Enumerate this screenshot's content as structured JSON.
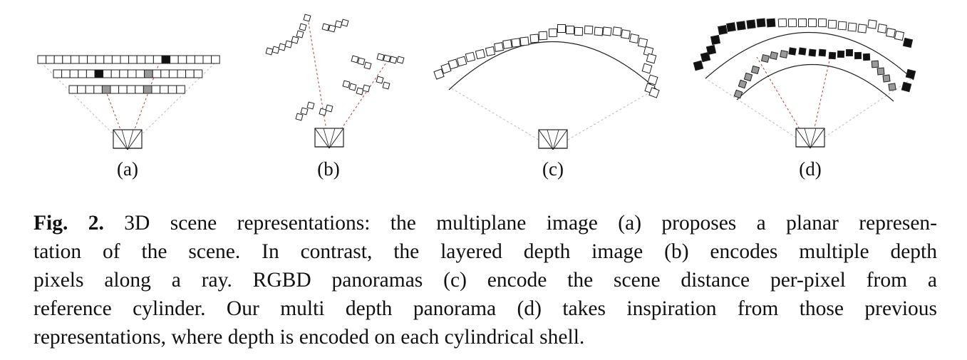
{
  "figure": {
    "panels": [
      {
        "id": "a",
        "label": "(a)",
        "representation": "multiplane image"
      },
      {
        "id": "b",
        "label": "(b)",
        "representation": "layered depth image"
      },
      {
        "id": "c",
        "label": "(c)",
        "representation": "RGBD panorama"
      },
      {
        "id": "d",
        "label": "(d)",
        "representation": "multi depth panorama"
      }
    ],
    "colors": {
      "stroke": "#222222",
      "dark_pixel": "#111111",
      "gray_pixel": "#999999",
      "frustum_dash": "#bbbbbb",
      "ray_dash": "#b04040"
    }
  },
  "caption": {
    "label": "Fig. 2.",
    "lines": [
      "3D scene representations: the multiplane image (a) proposes a planar represen-",
      "tation of the scene. In contrast, the layered depth image (b) encodes multiple depth",
      "pixels along a ray. RGBD panoramas (c) encode the scene distance per-pixel from a",
      "reference cylinder. Our multi depth panorama (d) takes inspiration from those previous",
      "representations, where depth is encoded on each cylindrical shell."
    ]
  }
}
